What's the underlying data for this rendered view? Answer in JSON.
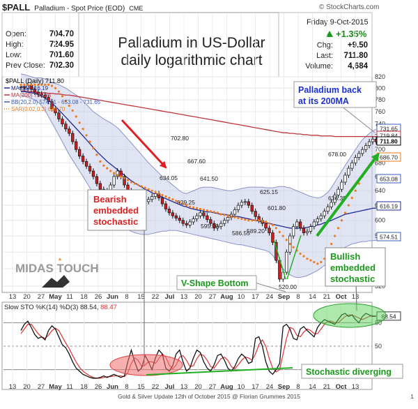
{
  "header": {
    "symbol": "$PALL",
    "name": "Palladium - Spot Price (EOD)",
    "exchange": "CME",
    "watermark": "© StockCharts.com",
    "date": "Friday  9-Oct-2015",
    "pct_change": "+1.35%",
    "stats_left": [
      {
        "label": "Open:",
        "value": "704.70"
      },
      {
        "label": "High:",
        "value": "724.95"
      },
      {
        "label": "Low:",
        "value": "701.60"
      },
      {
        "label": "Prev Close:",
        "value": "702.30"
      }
    ],
    "stats_right": [
      {
        "label": "Chg:",
        "value": "+9.50"
      },
      {
        "label": "Last:",
        "value": "711.80"
      },
      {
        "label": "Volume:",
        "value": "4,684"
      }
    ]
  },
  "annotations": {
    "title_line1": "Palladium in US-Dollar",
    "title_line2": "daily logarithmic chart",
    "bearish": [
      "Bearish",
      "embedded",
      "stochastic"
    ],
    "bullish": [
      "Bullish",
      "embedded",
      "stochastic"
    ],
    "pall_back": [
      "Palladium back",
      "at its 200MA"
    ],
    "v_shape": "V-Shape Bottom",
    "stoch_div": "Stochastic diverging",
    "logo": "MIDAS TOUCH"
  },
  "legend": [
    {
      "text": "$PALL (Daily) 711.80",
      "color": "#000000"
    },
    {
      "text": "MA(50) 616.19",
      "color": "#1f2a9a"
    },
    {
      "text": "MA(200) 719.84",
      "color": "#c0343c"
    },
    {
      "text": "BB(20,2.0) 574.51 - 653.08 - 731.65",
      "color": "#3b5bb8"
    },
    {
      "text": "SAR(0.02,0.2) 686.70",
      "color": "#f07a1a"
    }
  ],
  "stoch_legend": {
    "label": "Slow STO %K(14) %D(3) 88.54, ",
    "d_value": "88.47",
    "d_color": "#e03030"
  },
  "footer": "Gold & Silver Update 12th of October 2015 @ Florian Grummes 2015",
  "page_number": "1",
  "chart_data": [
    {
      "type": "line",
      "title": "",
      "scale": "log",
      "ylim": [
        520,
        820
      ],
      "yticks": [
        520,
        540,
        560,
        580,
        600,
        620,
        640,
        660,
        680,
        700,
        720,
        740,
        760,
        780,
        800,
        820
      ],
      "x_labels": [
        "13",
        "20",
        "27",
        "May",
        "11",
        "18",
        "26",
        "Jun",
        "8",
        "15",
        "22",
        "Jul",
        "13",
        "20",
        "27",
        "Aug",
        "10",
        "17",
        "24",
        "Sep",
        "8",
        "14",
        "21",
        "Oct",
        "13"
      ],
      "x_bold": [
        "May",
        "Jun",
        "Jul",
        "Aug",
        "Sep",
        "Oct"
      ],
      "price_labels": [
        {
          "label": "702.80",
          "value": 702.8
        },
        {
          "label": "667.60",
          "value": 667.6
        },
        {
          "label": "641.50",
          "value": 641.5
        },
        {
          "label": "634.05",
          "value": 634.05
        },
        {
          "label": "629.25",
          "value": 629.25
        },
        {
          "label": "625.15",
          "value": 625.15
        },
        {
          "label": "601.80",
          "value": 601.8
        },
        {
          "label": "595.00",
          "value": 595.0
        },
        {
          "label": "589.20",
          "value": 589.2
        },
        {
          "label": "586.55",
          "value": 586.55
        },
        {
          "label": "520.00",
          "value": 520.0
        },
        {
          "label": "678.00",
          "value": 678.0
        },
        {
          "label": "636.35",
          "value": 636.35
        }
      ],
      "right_tags": [
        {
          "label": "731.65",
          "value": 731.65,
          "color": "#3b5bb8"
        },
        {
          "label": "719.84",
          "value": 719.84,
          "color": "#c0343c"
        },
        {
          "label": "711.80",
          "value": 711.8,
          "color": "#000000"
        },
        {
          "label": "686.70",
          "value": 686.7,
          "color": "#f07a1a"
        },
        {
          "label": "653.08",
          "value": 653.08,
          "color": "#3b5bb8"
        },
        {
          "label": "616.19",
          "value": 616.19,
          "color": "#1f2a9a"
        },
        {
          "label": "574.51",
          "value": 574.51,
          "color": "#3b5bb8"
        }
      ],
      "price": [
        802,
        800,
        805,
        798,
        793,
        790,
        788,
        784,
        777,
        765,
        758,
        748,
        740,
        732,
        725,
        712,
        700,
        690,
        682,
        675,
        668,
        660,
        650,
        642,
        636,
        640,
        648,
        660,
        668,
        660,
        648,
        640,
        632,
        630,
        628,
        626,
        625,
        628,
        632,
        636,
        630,
        622,
        615,
        610,
        606,
        603,
        600,
        596,
        594,
        598,
        602,
        606,
        610,
        606,
        601,
        596,
        590,
        592,
        596,
        600,
        604,
        608,
        614,
        620,
        624,
        625,
        620,
        612,
        605,
        600,
        596,
        590,
        584,
        572,
        550,
        528,
        536,
        560,
        580,
        592,
        598,
        590,
        584,
        586,
        592,
        598,
        602,
        606,
        612,
        618,
        624,
        634,
        642,
        652,
        662,
        672,
        680,
        688,
        694,
        700,
        706,
        712,
        716,
        711.8
      ],
      "ma50": [
        794,
        794,
        793,
        792,
        791,
        789,
        786,
        783,
        779,
        774,
        769,
        763,
        757,
        751,
        745,
        739,
        733,
        727,
        721,
        715,
        709,
        703,
        697,
        692,
        687,
        682,
        678,
        674,
        670,
        666,
        662,
        658,
        654,
        651,
        648,
        645,
        642,
        640,
        637,
        635,
        633,
        631,
        629,
        627,
        625,
        623,
        621,
        619,
        618,
        616,
        615,
        614,
        613,
        612,
        611,
        611,
        610,
        609,
        608,
        608,
        607,
        606,
        605,
        605,
        604,
        603,
        602,
        601,
        600,
        599,
        598,
        597,
        596,
        595,
        594,
        593,
        592,
        591,
        590,
        590,
        590,
        590,
        590,
        591,
        592,
        593,
        594,
        595,
        597,
        598,
        600,
        602,
        604,
        606,
        608,
        609,
        610,
        611,
        612,
        613,
        614,
        615,
        616,
        616.19
      ],
      "ma200": [
        795,
        795,
        794,
        794,
        793,
        793,
        792,
        792,
        791,
        791,
        790,
        790,
        789,
        788,
        788,
        787,
        786,
        785,
        784,
        783,
        782,
        781,
        780,
        779,
        778,
        777,
        776,
        775,
        774,
        773,
        772,
        771,
        770,
        769,
        768,
        767,
        766,
        765,
        764,
        763,
        762,
        761,
        760,
        759,
        758,
        757,
        756,
        755,
        754,
        753,
        752,
        751,
        750,
        749,
        748,
        747,
        746,
        745,
        744,
        743,
        742,
        741,
        740,
        739,
        738,
        737,
        736,
        735,
        734,
        733,
        732,
        731,
        730,
        729,
        728,
        727,
        726,
        726,
        725,
        725,
        724,
        724,
        723,
        723,
        722,
        722,
        722,
        721,
        721,
        721,
        721,
        720,
        720,
        720,
        720,
        720,
        720,
        720,
        720,
        720,
        720,
        720,
        720,
        719.84
      ],
      "bb_upper": [
        825,
        824,
        822,
        820,
        818,
        818,
        818,
        816,
        814,
        810,
        808,
        806,
        803,
        800,
        796,
        792,
        788,
        784,
        778,
        772,
        766,
        760,
        756,
        752,
        748,
        745,
        742,
        738,
        734,
        728,
        722,
        716,
        710,
        704,
        698,
        692,
        686,
        680,
        675,
        670,
        665,
        660,
        656,
        652,
        648,
        644,
        640,
        637,
        636,
        638,
        640,
        642,
        644,
        645,
        645,
        645,
        644,
        643,
        642,
        641,
        640,
        640,
        641,
        642,
        643,
        644,
        645,
        645,
        645,
        645,
        645,
        644,
        644,
        644,
        645,
        646,
        646,
        645,
        644,
        642,
        640,
        638,
        636,
        634,
        632,
        631,
        630,
        631,
        634,
        638,
        644,
        652,
        660,
        668,
        676,
        684,
        692,
        700,
        708,
        715,
        720,
        725,
        729,
        731.65
      ],
      "bb_lower": [
        788,
        786,
        784,
        782,
        780,
        776,
        770,
        762,
        752,
        742,
        732,
        722,
        712,
        702,
        692,
        684,
        676,
        668,
        660,
        652,
        644,
        636,
        628,
        620,
        614,
        608,
        604,
        600,
        596,
        593,
        590,
        588,
        586,
        584,
        583,
        582,
        582,
        582,
        583,
        584,
        585,
        586,
        586,
        587,
        587,
        587,
        586,
        585,
        584,
        583,
        582,
        581,
        580,
        579,
        578,
        577,
        576,
        575,
        574,
        573,
        572,
        571,
        570,
        569,
        569,
        568,
        567,
        566,
        565,
        564,
        563,
        562,
        560,
        556,
        550,
        544,
        540,
        536,
        533,
        531,
        530,
        530,
        531,
        532,
        534,
        536,
        538,
        541,
        544,
        548,
        552,
        556,
        560,
        563,
        566,
        568,
        570,
        571,
        572,
        573,
        573,
        574,
        574,
        574.51
      ],
      "sar": [
        806,
        806,
        806,
        806,
        806,
        806,
        806,
        806,
        806,
        804,
        800,
        794,
        786,
        778,
        770,
        762,
        752,
        742,
        732,
        722,
        712,
        702,
        692,
        682,
        676,
        672,
        668,
        665,
        662,
        660,
        658,
        655,
        652,
        650,
        648,
        646,
        644,
        642,
        640,
        638,
        636,
        634,
        632,
        630,
        628,
        626,
        624,
        622,
        620,
        618,
        617,
        616,
        615,
        614,
        613,
        612,
        611,
        610,
        608,
        607,
        606,
        605,
        604,
        603,
        602,
        601,
        600,
        600,
        600,
        600,
        599,
        598,
        596,
        594,
        590,
        585,
        580,
        575,
        570,
        566,
        562,
        558,
        555,
        552,
        550,
        548,
        546,
        548,
        552,
        560,
        570,
        580,
        590,
        600,
        610,
        620,
        630,
        640,
        650,
        660,
        668,
        676,
        682,
        686.7
      ]
    },
    {
      "type": "line",
      "title": "",
      "ylim": [
        0,
        100
      ],
      "yticks": [
        20,
        50,
        80
      ],
      "x_labels": [
        "13",
        "20",
        "27",
        "May",
        "11",
        "18",
        "26",
        "Jun",
        "8",
        "15",
        "22",
        "Jul",
        "13",
        "20",
        "27",
        "Aug",
        "10",
        "17",
        "24",
        "Sep",
        "8",
        "14",
        "21",
        "Oct",
        "13"
      ],
      "k": [
        70,
        78,
        82,
        74,
        65,
        60,
        62,
        58,
        70,
        76,
        72,
        62,
        52,
        48,
        40,
        30,
        22,
        18,
        14,
        12,
        10,
        9,
        9,
        10,
        12,
        10,
        12,
        14,
        12,
        10,
        12,
        30,
        45,
        30,
        18,
        22,
        38,
        30,
        20,
        35,
        45,
        40,
        22,
        18,
        25,
        40,
        45,
        30,
        18,
        22,
        35,
        45,
        42,
        30,
        22,
        18,
        26,
        38,
        40,
        32,
        22,
        18,
        24,
        34,
        40,
        36,
        28,
        30,
        60,
        62,
        50,
        30,
        18,
        14,
        20,
        28,
        75,
        78,
        72,
        60,
        58,
        72,
        75,
        70,
        66,
        62,
        74,
        80,
        84,
        82,
        80,
        78,
        84,
        90,
        92,
        88,
        90,
        84,
        80,
        88,
        92,
        90,
        88,
        88.54
      ],
      "d": [
        66,
        72,
        78,
        78,
        72,
        66,
        62,
        60,
        64,
        70,
        73,
        70,
        62,
        54,
        47,
        38,
        30,
        23,
        18,
        15,
        12,
        10,
        9,
        9,
        10,
        11,
        11,
        12,
        12,
        12,
        11,
        16,
        28,
        35,
        32,
        24,
        26,
        30,
        30,
        28,
        34,
        40,
        36,
        26,
        21,
        26,
        36,
        38,
        32,
        24,
        25,
        34,
        40,
        38,
        32,
        24,
        22,
        28,
        34,
        36,
        32,
        24,
        21,
        26,
        32,
        36,
        35,
        32,
        40,
        52,
        58,
        50,
        34,
        22,
        17,
        20,
        40,
        60,
        74,
        72,
        64,
        62,
        68,
        72,
        70,
        66,
        66,
        72,
        78,
        82,
        82,
        80,
        80,
        84,
        88,
        90,
        90,
        88,
        86,
        84,
        86,
        88,
        89,
        88.47
      ]
    }
  ]
}
